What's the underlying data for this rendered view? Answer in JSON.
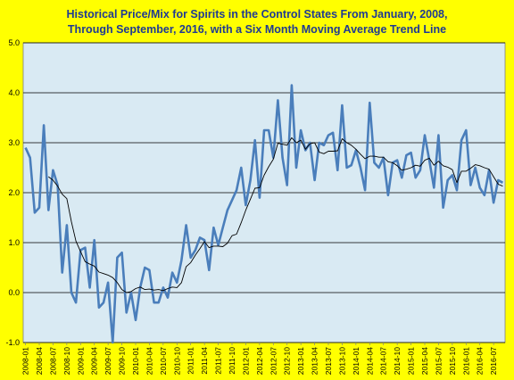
{
  "chart_data": {
    "type": "line",
    "title_lines": [
      "Historical Price/Mix for Spirits in the Control States From January, 2008,",
      "Through September, 2016, with a Six Month Moving Average Trend Line"
    ],
    "ylim": [
      -1.0,
      5.0
    ],
    "y_ticks": [
      "5.0",
      "4.0",
      "3.0",
      "2.0",
      "1.0",
      "0.0",
      "-1.0"
    ],
    "x_tick_labels": [
      "2008-01",
      "2008-04",
      "2008-07",
      "2008-10",
      "2009-01",
      "2009-04",
      "2009-07",
      "2009-10",
      "2010-01",
      "2010-04",
      "2010-07",
      "2010-10",
      "2011-01",
      "2011-04",
      "2011-07",
      "2011-10",
      "2012-01",
      "2012-04",
      "2012-07",
      "2012-10",
      "2013-01",
      "2013-04",
      "2013-07",
      "2013-10",
      "2014-01",
      "2014-04",
      "2014-07",
      "2014-10",
      "2015-01",
      "2015-04",
      "2015-07",
      "2015-10",
      "2016-01",
      "2016-04",
      "2016-07"
    ],
    "grid": true,
    "legend": "none",
    "colors": {
      "background": "#ffff00",
      "plot_area": "#d9eaf3",
      "monthly_line": "#4a7ebb",
      "trend_line": "#000000",
      "gridline": "#000000",
      "title": "#1f3a93"
    },
    "series": [
      {
        "role": "monthly",
        "values": [
          2.9,
          2.7,
          1.6,
          1.7,
          3.35,
          1.65,
          2.45,
          2.15,
          0.4,
          1.35,
          0.0,
          -0.2,
          0.85,
          0.9,
          0.1,
          1.05,
          -0.3,
          -0.2,
          0.2,
          -1.0,
          0.7,
          0.8,
          -0.4,
          0.0,
          -0.55,
          0.1,
          0.5,
          0.45,
          -0.2,
          -0.2,
          0.1,
          -0.1,
          0.4,
          0.2,
          0.65,
          1.35,
          0.7,
          0.85,
          1.1,
          1.05,
          0.45,
          1.3,
          0.95,
          1.3,
          1.65,
          1.85,
          2.05,
          2.5,
          1.75,
          2.25,
          3.05,
          1.9,
          3.25,
          3.25,
          2.7,
          3.85,
          2.7,
          2.15,
          4.15,
          2.5,
          3.25,
          2.85,
          3.0,
          2.25,
          3.0,
          2.95,
          3.15,
          3.2,
          2.45,
          3.75,
          2.5,
          2.55,
          2.85,
          2.5,
          2.05,
          3.8,
          2.6,
          2.5,
          2.7,
          1.95,
          2.6,
          2.65,
          2.3,
          2.75,
          2.8,
          2.3,
          2.45,
          3.15,
          2.65,
          2.1,
          3.15,
          1.7,
          2.25,
          2.35,
          2.05,
          3.05,
          3.25,
          2.15,
          2.5,
          2.1,
          1.95,
          2.45,
          1.8,
          2.25,
          2.2
        ]
      },
      {
        "role": "six_month_moving_average",
        "values": [
          null,
          null,
          null,
          null,
          null,
          2.32,
          2.25,
          2.13,
          1.97,
          1.88,
          1.42,
          1.03,
          0.82,
          0.62,
          0.57,
          0.53,
          0.41,
          0.38,
          0.35,
          0.3,
          0.2,
          0.06,
          0.0,
          0.02,
          0.08,
          0.11,
          0.06,
          0.07,
          0.05,
          0.06,
          0.04,
          0.08,
          0.11,
          0.1,
          0.2,
          0.52,
          0.6,
          0.75,
          0.88,
          1.02,
          0.9,
          0.93,
          0.93,
          0.92,
          0.99,
          1.14,
          1.17,
          1.4,
          1.65,
          1.87,
          2.09,
          2.1,
          2.35,
          2.52,
          2.67,
          2.99,
          2.97,
          2.95,
          3.1,
          3.0,
          3.05,
          2.87,
          2.98,
          3.0,
          2.81,
          2.78,
          2.83,
          2.83,
          2.84,
          3.08,
          3.0,
          2.95,
          2.87,
          2.77,
          2.68,
          2.73,
          2.73,
          2.71,
          2.71,
          2.62,
          2.6,
          2.54,
          2.45,
          2.47,
          2.5,
          2.55,
          2.53,
          2.65,
          2.69,
          2.55,
          2.63,
          2.54,
          2.51,
          2.46,
          2.2,
          2.43,
          2.43,
          2.49,
          2.56,
          2.54,
          2.5,
          2.47,
          2.32,
          2.17,
          2.13
        ]
      }
    ]
  }
}
